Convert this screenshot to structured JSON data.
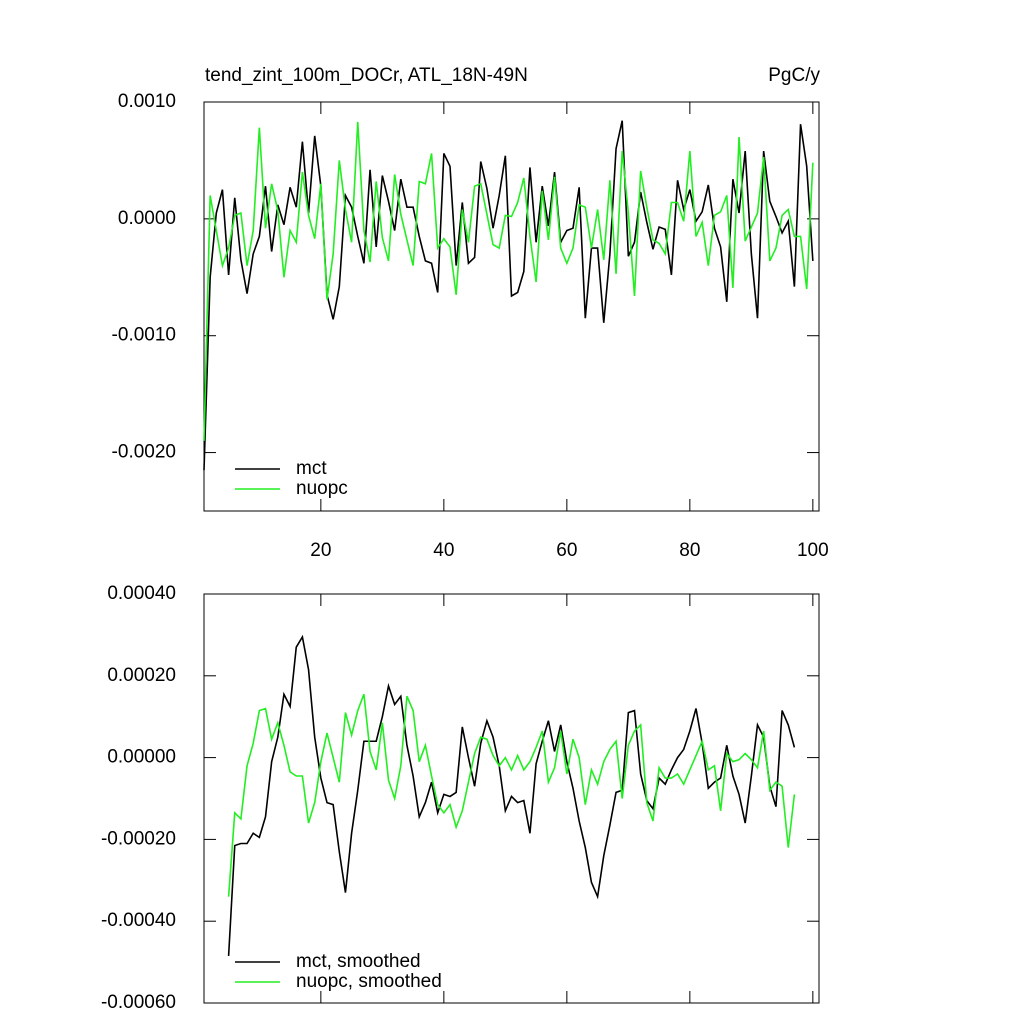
{
  "chart_data": [
    {
      "type": "line",
      "title": "tend_zint_100m_DOCr, ATL_18N-49N",
      "units": "PgC/y",
      "x": [
        1,
        2,
        3,
        4,
        5,
        6,
        7,
        8,
        9,
        10,
        11,
        12,
        13,
        14,
        15,
        16,
        17,
        18,
        19,
        20,
        21,
        22,
        23,
        24,
        25,
        26,
        27,
        28,
        29,
        30,
        31,
        32,
        33,
        34,
        35,
        36,
        37,
        38,
        39,
        40,
        41,
        42,
        43,
        44,
        45,
        46,
        47,
        48,
        49,
        50,
        51,
        52,
        53,
        54,
        55,
        56,
        57,
        58,
        59,
        60,
        61,
        62,
        63,
        64,
        65,
        66,
        67,
        68,
        69,
        70,
        71,
        72,
        73,
        74,
        75,
        76,
        77,
        78,
        79,
        80,
        81,
        82,
        83,
        84,
        85,
        86,
        87,
        88,
        89,
        90,
        91,
        92,
        93,
        94,
        95,
        96,
        97,
        98,
        99,
        100
      ],
      "xlim": [
        1,
        101
      ],
      "xticks": [
        20,
        40,
        60,
        80,
        100
      ],
      "ylim": [
        -0.0025,
        0.001
      ],
      "yticks": [
        {
          "value": 0.001,
          "label": "0.0010"
        },
        {
          "value": 0,
          "label": "0.0000"
        },
        {
          "value": -0.001,
          "label": "-0.0010"
        },
        {
          "value": -0.002,
          "label": "-0.0020"
        }
      ],
      "series": [
        {
          "name": "mct",
          "color": "#000000",
          "values": [
            -0.00215,
            -0.0005,
            5e-05,
            0.00025,
            -0.00048,
            0.00018,
            -0.00035,
            -0.00064,
            -0.0003,
            -0.00015,
            0.00028,
            -0.00028,
            0.00012,
            -5e-05,
            0.00027,
            0.0001,
            0.00066,
            5e-05,
            0.00071,
            0.00028,
            -0.00065,
            -0.00086,
            -0.00058,
            0.0002,
            0.0001,
            -0.00015,
            -0.00038,
            0.00042,
            -0.00024,
            0.00037,
            0.00015,
            -0.0001,
            0.00034,
            0.0001,
            0.0001,
            -0.00015,
            -0.00036,
            -0.00038,
            -0.00063,
            0.00056,
            0.00045,
            -0.0004,
            0.00014,
            -0.00038,
            -0.00033,
            0.00049,
            0.00026,
            -8e-05,
            0.0002,
            0.00054,
            -0.00066,
            -0.00063,
            -0.00045,
            0.00044,
            -0.0002,
            0.00028,
            -6e-05,
            0.0004,
            -0.0002,
            -0.0001,
            -8e-05,
            0.00027,
            -0.00085,
            -0.00025,
            -0.00025,
            -0.00089,
            -0.0003,
            0.0006,
            0.00084,
            -0.00032,
            -0.0002,
            0.00023,
            -3e-05,
            -0.00026,
            -7e-05,
            -9e-05,
            -0.00048,
            0.00033,
            8e-05,
            0.00025,
            -2e-05,
            6e-05,
            0.00029,
            -8e-05,
            -0.00024,
            -0.00071,
            0.00034,
            5e-05,
            0.00058,
            -0.0003,
            -0.00085,
            0.00058,
            0.00015,
            2e-05,
            -0.00012,
            -2e-05,
            -0.00058,
            0.00081,
            0.00045,
            -0.00036
          ]
        },
        {
          "name": "nuopc",
          "color": "#22ee22",
          "values": [
            -0.0019,
            0.0002,
            -0.0001,
            -0.0004,
            -0.00025,
            3e-05,
            5e-05,
            -0.0004,
            -0.0001,
            0.00078,
            -8e-05,
            0.0003,
            7e-05,
            -0.0005,
            -0.0001,
            -0.0002,
            0.0004,
            3e-05,
            -0.00017,
            0.0003,
            -0.00069,
            -0.0003,
            0.0005,
            8e-05,
            -0.0002,
            0.00083,
            -0.0001,
            -0.00037,
            0.00032,
            -0.00016,
            -0.00036,
            0.00038,
            4e-05,
            -0.00018,
            -0.0004,
            0.00032,
            0.0003,
            0.00056,
            -0.00025,
            -0.00017,
            -0.00024,
            -0.00065,
            8e-05,
            -0.0002,
            0.00028,
            0.0003,
            4e-05,
            -0.00022,
            -0.00025,
            3e-05,
            2e-05,
            0.00014,
            0.00035,
            -0.00015,
            -0.00054,
            0.00024,
            -0.00018,
            0.00036,
            -0.00025,
            -0.00038,
            -0.00025,
            0.00012,
            0.0001,
            -0.00025,
            8e-05,
            -0.00035,
            0.00033,
            -0.00047,
            0.00058,
            5e-05,
            -0.00066,
            0.00041,
            0.0001,
            -0.00018,
            -0.00021,
            -0.0003,
            0.00014,
            0.00014,
            -2e-05,
            0.00058,
            -0.00015,
            -3e-05,
            -0.0004,
            3e-05,
            6e-05,
            0.0002,
            -0.00059,
            0.0007,
            -0.00019,
            -7e-05,
            5e-05,
            0.00053,
            -0.00036,
            -0.00025,
            3e-05,
            8e-05,
            -0.00015,
            -0.00015,
            -0.0006,
            0.00048
          ]
        }
      ]
    },
    {
      "type": "line",
      "x": [
        5,
        6,
        7,
        8,
        9,
        10,
        11,
        12,
        13,
        14,
        15,
        16,
        17,
        18,
        19,
        20,
        21,
        22,
        23,
        24,
        25,
        26,
        27,
        28,
        29,
        30,
        31,
        32,
        33,
        34,
        35,
        36,
        37,
        38,
        39,
        40,
        41,
        42,
        43,
        44,
        45,
        46,
        47,
        48,
        49,
        50,
        51,
        52,
        53,
        54,
        55,
        56,
        57,
        58,
        59,
        60,
        61,
        62,
        63,
        64,
        65,
        66,
        67,
        68,
        69,
        70,
        71,
        72,
        73,
        74,
        75,
        76,
        77,
        78,
        79,
        80,
        81,
        82,
        83,
        84,
        85,
        86,
        87,
        88,
        89,
        90,
        91,
        92,
        93,
        94,
        95,
        96,
        97
      ],
      "xlim": [
        1,
        101
      ],
      "xticks": [
        20,
        40,
        60,
        80,
        100
      ],
      "ylim": [
        -0.0006,
        0.0004
      ],
      "yticks": [
        {
          "value": 0.0004,
          "label": "0.00040"
        },
        {
          "value": 0.0002,
          "label": "0.00020"
        },
        {
          "value": 0,
          "label": "0.00000"
        },
        {
          "value": -0.0002,
          "label": "-0.00020"
        },
        {
          "value": -0.0004,
          "label": "-0.00040"
        },
        {
          "value": -0.0006,
          "label": "-0.00060"
        }
      ],
      "series": [
        {
          "name": "mct, smoothed",
          "color": "#000000",
          "values": [
            -0.000485,
            -0.000215,
            -0.00021,
            -0.00021,
            -0.000185,
            -0.000195,
            -0.000145,
            -1e-05,
            5e-05,
            0.000155,
            0.000125,
            0.00027,
            0.000295,
            0.000215,
            5e-05,
            -5e-05,
            -0.00011,
            -0.000115,
            -0.00023,
            -0.00033,
            -0.000185,
            -8e-05,
            4e-05,
            4e-05,
            4e-05,
            0.0001,
            0.000175,
            0.00013,
            0.00015,
            3e-05,
            -4.5e-05,
            -0.000145,
            -0.00011,
            -6e-05,
            -0.000135,
            -9e-05,
            -9.5e-05,
            -8.5e-05,
            7.5e-05,
            0,
            -7e-05,
            3.5e-05,
            9e-05,
            5e-05,
            -2e-05,
            -0.00013,
            -9.5e-05,
            -0.00011,
            -0.000105,
            -0.000185,
            -1.5e-05,
            4e-05,
            9e-05,
            1.5e-05,
            8e-05,
            -1e-05,
            -7.5e-05,
            -0.000155,
            -0.00022,
            -0.000305,
            -0.00034,
            -0.00024,
            -0.000165,
            -8.5e-05,
            -8e-05,
            0.00011,
            0.000115,
            -4e-05,
            -0.000105,
            -0.000125,
            -5e-05,
            -6.5e-05,
            -3e-05,
            0,
            2e-05,
            6.5e-05,
            0.00012,
            3.5e-05,
            -7.5e-05,
            -6e-05,
            -5e-05,
            3e-05,
            -4.5e-05,
            -9e-05,
            -0.00016,
            -4.5e-05,
            8e-05,
            5e-05,
            -7e-05,
            -0.00012,
            0.000115,
            8e-05,
            2.5e-05
          ]
        },
        {
          "name": "nuopc, smoothed",
          "color": "#22ee22",
          "values": [
            -0.00034,
            -0.000135,
            -0.00015,
            -2e-05,
            3.5e-05,
            0.000115,
            0.00012,
            4.5e-05,
            8.5e-05,
            3e-05,
            -3.5e-05,
            -4.5e-05,
            -4.5e-05,
            -0.00016,
            -0.00011,
            -1e-05,
            6e-05,
            0,
            -6e-05,
            0.00011,
            5.5e-05,
            0.000115,
            0.000155,
            1.5e-05,
            -3e-05,
            8.5e-05,
            -5.5e-05,
            -0.0001,
            -2e-05,
            0.00015,
            0.000115,
            -1e-05,
            3e-05,
            -4.5e-05,
            -0.000115,
            -0.000135,
            -0.000115,
            -0.00017,
            -0.00013,
            -6e-05,
            1e-05,
            5e-05,
            4.5e-05,
            5e-06,
            -2e-05,
            0,
            -3e-05,
            5e-06,
            -3e-05,
            -1e-05,
            2.5e-05,
            6.5e-05,
            -6e-05,
            -2.5e-05,
            6.5e-05,
            -4e-05,
            4.5e-05,
            0,
            -0.000115,
            -3e-05,
            -6.5e-05,
            -1e-05,
            2e-05,
            4e-05,
            -0.0001,
            3e-05,
            6.5e-05,
            8e-05,
            -0.00011,
            -0.000155,
            -2.5e-05,
            -5e-05,
            -5e-05,
            -4e-05,
            -6.5e-05,
            -3e-05,
            5e-06,
            4e-05,
            -3e-05,
            -2e-05,
            -0.00013,
            1e-05,
            -1e-05,
            -5e-06,
            1e-05,
            -5e-06,
            -2.5e-05,
            6.5e-05,
            -8e-05,
            -6e-05,
            -7e-05,
            -0.00022,
            -9e-05
          ]
        }
      ]
    }
  ]
}
